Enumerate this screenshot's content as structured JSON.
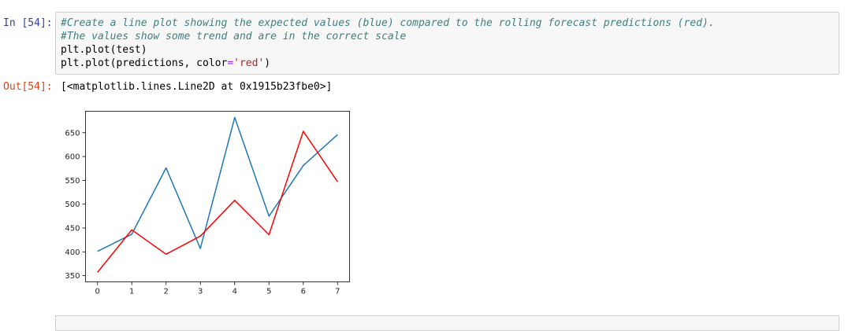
{
  "cell_in": {
    "prompt": "In [54]:",
    "code": {
      "line1": "#Create a line plot showing the expected values (blue) compared to the rolling forecast predictions (red).",
      "line2": "#The values show some trend and are in the correct scale",
      "line3": "plt.plot(test)",
      "line4_prefix": "plt.plot(predictions, color",
      "line4_op": "=",
      "line4_string": "'red'",
      "line4_suffix": ")"
    }
  },
  "cell_out": {
    "prompt": "Out[54]:",
    "text": "[<matplotlib.lines.Line2D at 0x1915b23fbe0>]"
  },
  "chart_data": {
    "type": "line",
    "title": "",
    "xlabel": "",
    "ylabel": "",
    "x": [
      0,
      1,
      2,
      3,
      4,
      5,
      6,
      7
    ],
    "xticks": [
      "0",
      "1",
      "2",
      "3",
      "4",
      "5",
      "6",
      "7"
    ],
    "yticks": [
      "350",
      "400",
      "450",
      "500",
      "550",
      "600",
      "650"
    ],
    "xlim": [
      -0.35,
      7.35
    ],
    "ylim": [
      337,
      695
    ],
    "series": [
      {
        "name": "test",
        "color": "#1f77b4",
        "values": [
          401,
          437,
          576,
          407,
          682,
          475,
          581,
          646
        ]
      },
      {
        "name": "predictions",
        "color": "#ff0000",
        "values": [
          357,
          446,
          395,
          433,
          508,
          436,
          653,
          547
        ]
      }
    ]
  }
}
